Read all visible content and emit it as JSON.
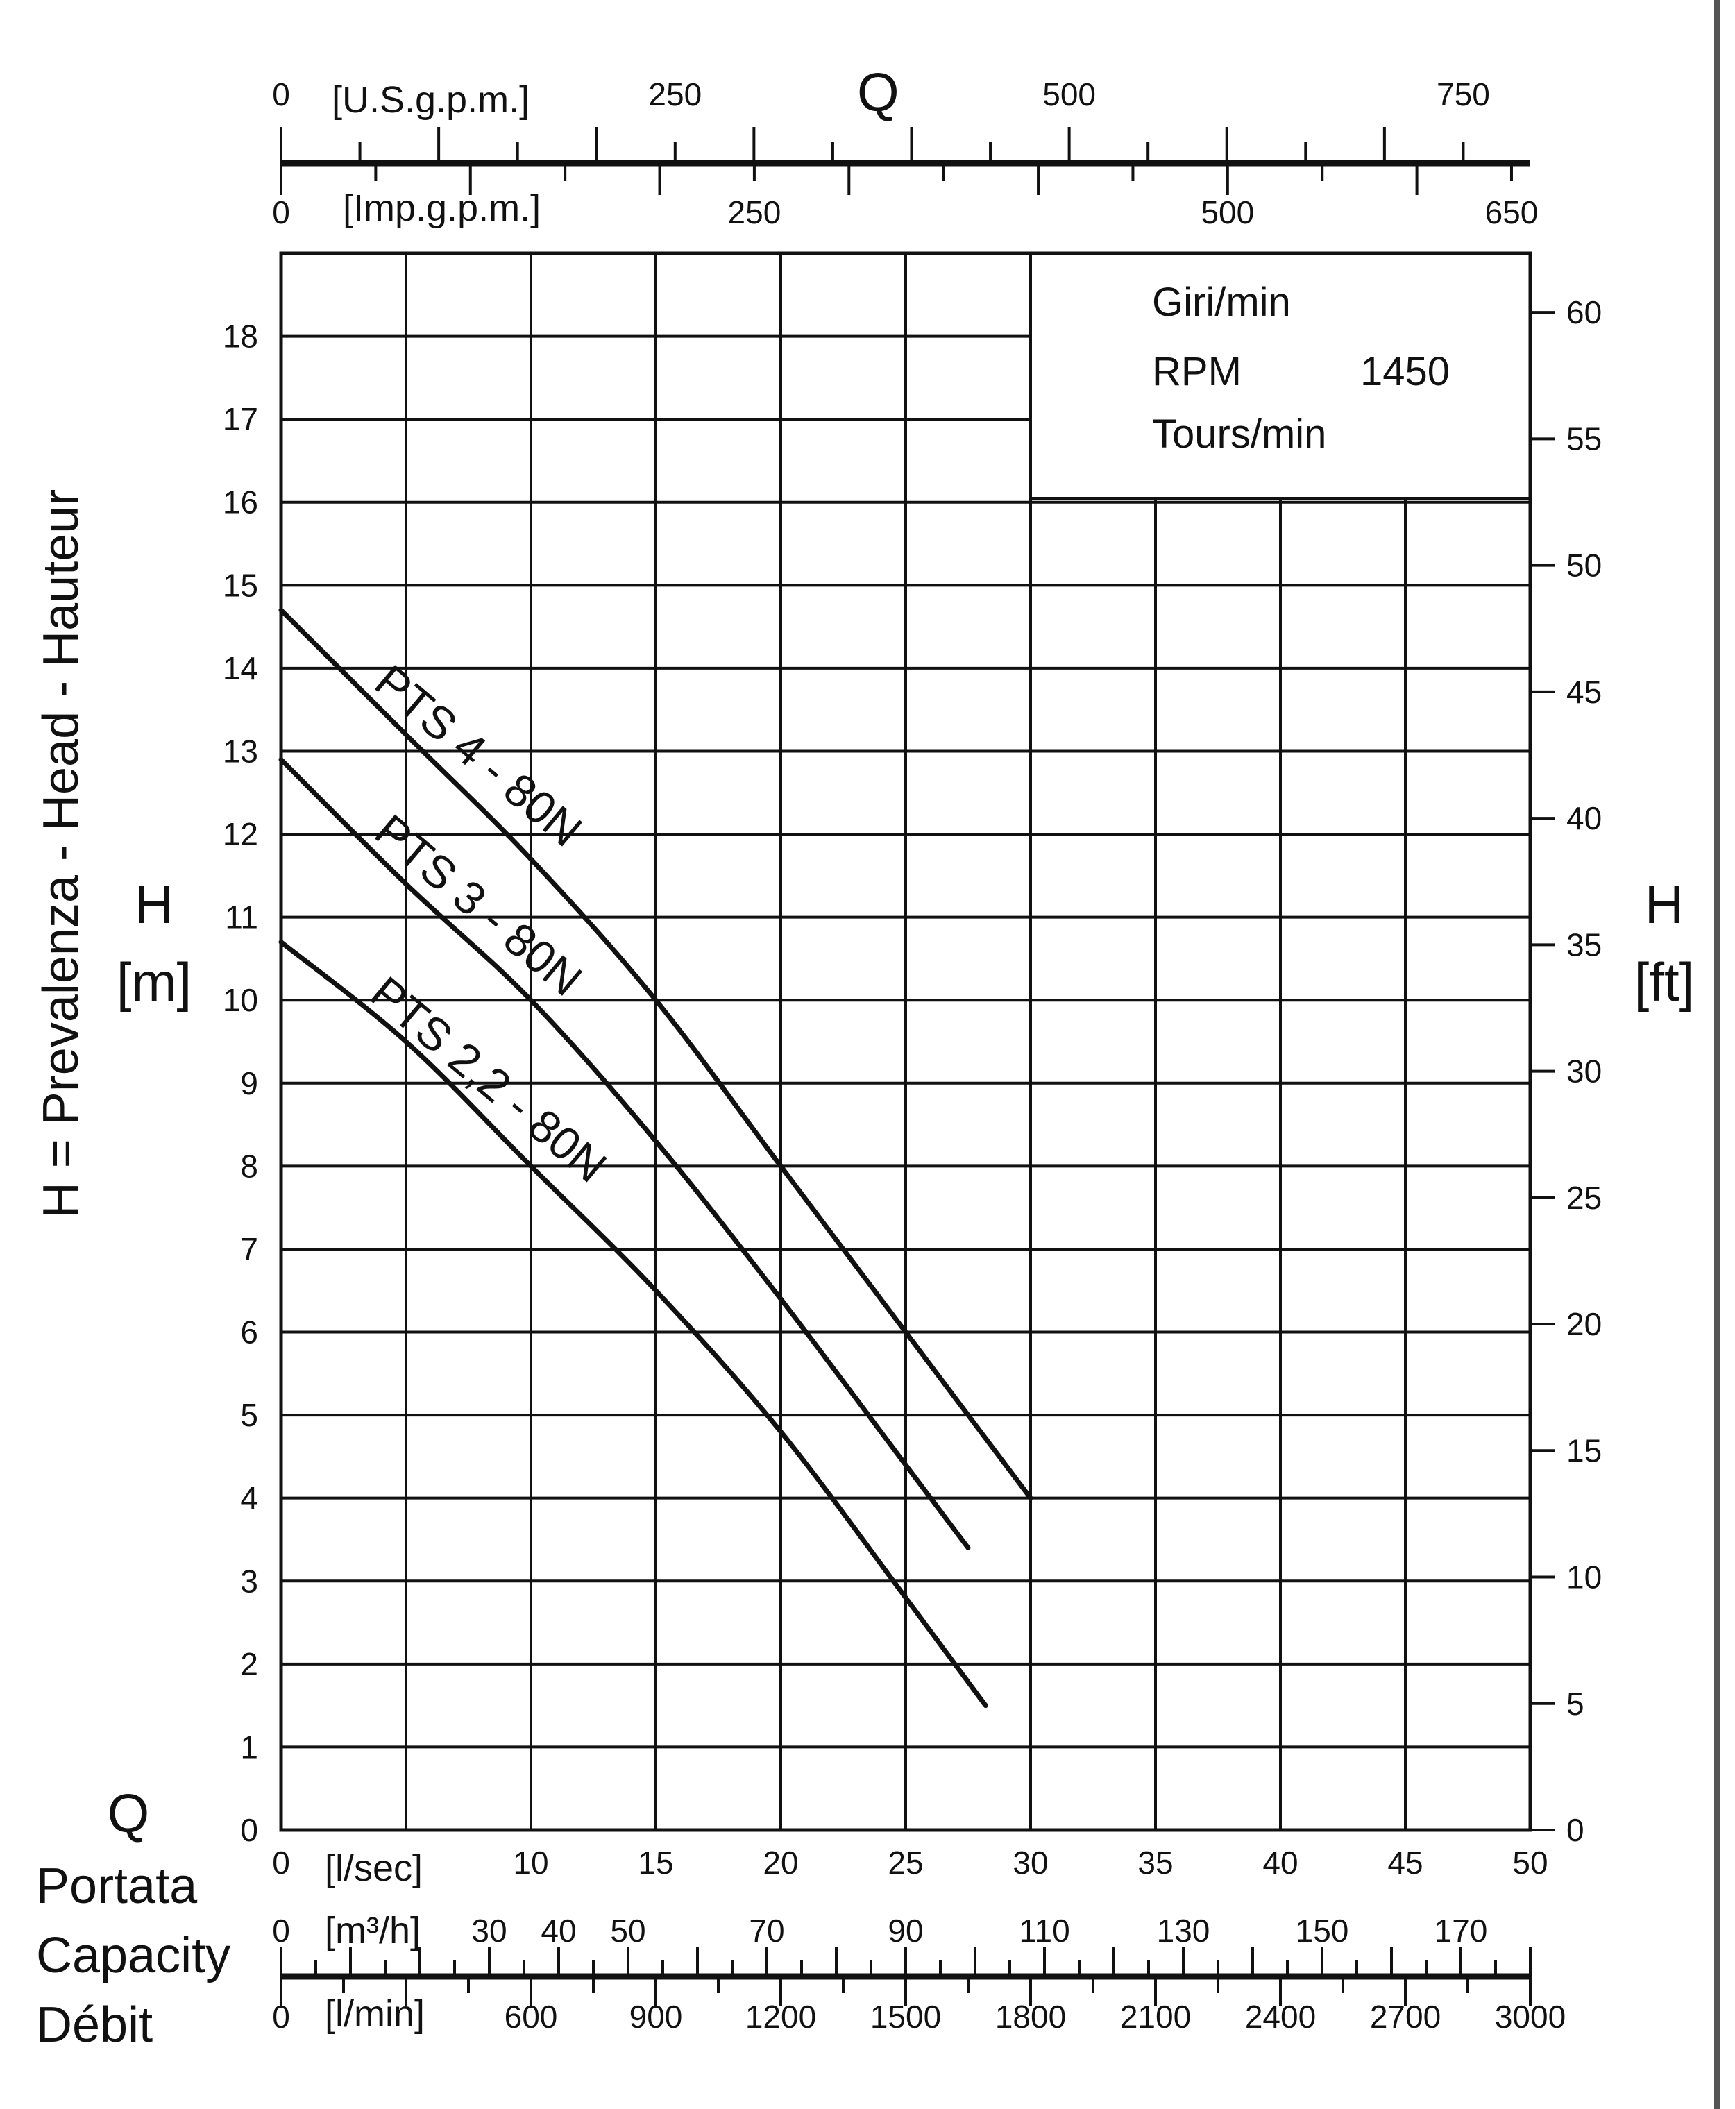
{
  "chart_data": {
    "type": "line",
    "x_primary": {
      "unit": "[l/sec]",
      "range": [
        0,
        50
      ],
      "ticks": [
        0,
        10,
        15,
        20,
        25,
        30,
        35,
        40,
        45,
        50
      ]
    },
    "y_primary": {
      "symbol": "H",
      "unit": "[m]",
      "title": "H = Prevalenza - Head - Hauteur",
      "range": [
        0,
        19
      ],
      "ticks": [
        0,
        1,
        2,
        3,
        4,
        5,
        6,
        7,
        8,
        9,
        10,
        11,
        12,
        13,
        14,
        15,
        16,
        17,
        18
      ]
    },
    "y_secondary": {
      "symbol": "H",
      "unit": "[ft]",
      "ticks": [
        0,
        5,
        10,
        15,
        20,
        25,
        30,
        35,
        40,
        45,
        50,
        55,
        60
      ]
    },
    "top_axes": {
      "symbol": "Q",
      "usgpm": {
        "unit": "[U.S.g.p.m.]",
        "labels": [
          {
            "text": "0",
            "value": 0
          },
          {
            "text": "250",
            "value": 250
          },
          {
            "text": "500",
            "value": 500
          },
          {
            "text": "750",
            "value": 750
          }
        ]
      },
      "impgpm": {
        "unit": "[Imp.g.p.m.]",
        "labels": [
          {
            "text": "0",
            "value": 0
          },
          {
            "text": "250",
            "value": 250
          },
          {
            "text": "500",
            "value": 500
          },
          {
            "text": "650",
            "value": 650
          }
        ]
      }
    },
    "bottom_axes": {
      "symbol": "Q",
      "names": [
        "Portata",
        "Capacity",
        "Débit"
      ],
      "m3h": {
        "unit": "[m³/h]",
        "labels": [
          {
            "text": "0",
            "value": 0
          },
          {
            "text": "30",
            "value": 30
          },
          {
            "text": "40",
            "value": 40
          },
          {
            "text": "50",
            "value": 50
          },
          {
            "text": "70",
            "value": 70
          },
          {
            "text": "90",
            "value": 90
          },
          {
            "text": "110",
            "value": 110
          },
          {
            "text": "130",
            "value": 130
          },
          {
            "text": "150",
            "value": 150
          },
          {
            "text": "170",
            "value": 170
          }
        ]
      },
      "lmin": {
        "unit": "[l/min]",
        "labels": [
          {
            "text": "0",
            "value": 0
          },
          {
            "text": "600",
            "value": 600
          },
          {
            "text": "900",
            "value": 900
          },
          {
            "text": "1200",
            "value": 1200
          },
          {
            "text": "1500",
            "value": 1500
          },
          {
            "text": "1800",
            "value": 1800
          },
          {
            "text": "2100",
            "value": 2100
          },
          {
            "text": "2400",
            "value": 2400
          },
          {
            "text": "2700",
            "value": 2700
          },
          {
            "text": "3000",
            "value": 3000
          }
        ]
      }
    },
    "speed_box": {
      "line1": "Giri/min",
      "line2": "RPM",
      "value": "1450",
      "line3": "Tours/min"
    },
    "grid": true,
    "series": [
      {
        "name": "PTS 4 - 80N",
        "x": [
          0,
          5,
          10,
          15,
          20,
          25,
          30
        ],
        "y": [
          14.7,
          13.2,
          11.7,
          10.0,
          8.0,
          6.0,
          4.0
        ]
      },
      {
        "name": "PTS 3 - 80N",
        "x": [
          0,
          5,
          10,
          15,
          20,
          25,
          27.5
        ],
        "y": [
          12.9,
          11.4,
          10.0,
          8.3,
          6.4,
          4.4,
          3.4
        ]
      },
      {
        "name": "PTS 2,2 - 80N",
        "x": [
          0,
          5,
          10,
          15,
          20,
          25,
          28.2
        ],
        "y": [
          10.7,
          9.5,
          8.0,
          6.5,
          4.8,
          2.8,
          1.5
        ]
      }
    ]
  },
  "colors": {
    "ink": "#111111",
    "background": "#ffffff",
    "frame": "#555555"
  }
}
